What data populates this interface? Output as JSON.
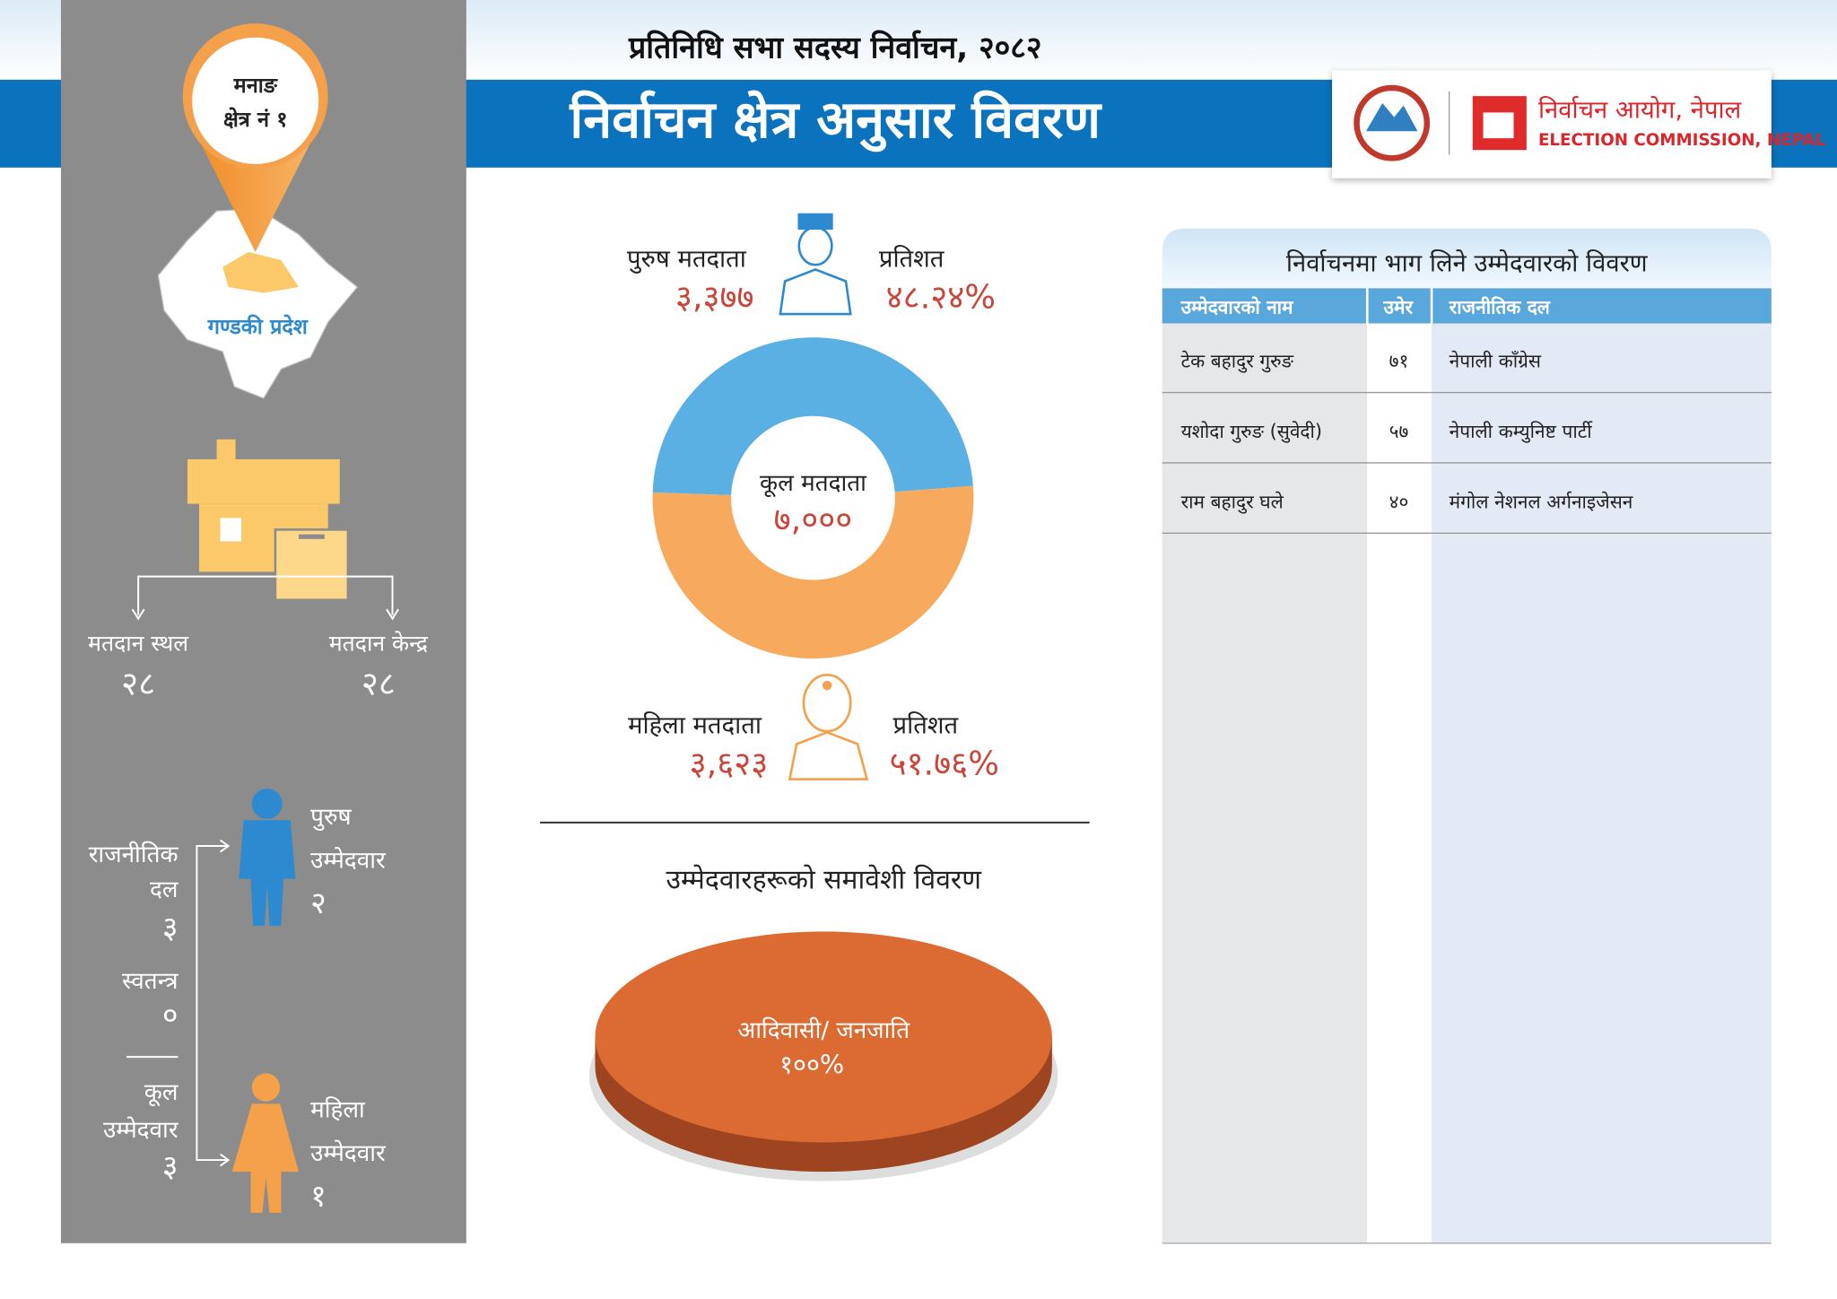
{
  "header": {
    "subtitle": "प्रतिनिधि सभा सदस्य निर्वाचन, २०८२",
    "title": "निर्वाचन क्षेत्र अनुसार विवरण",
    "logo_np": "निर्वाचन आयोग, नेपाल",
    "logo_en": "ELECTION COMMISSION, NEPAL"
  },
  "sidebar": {
    "constituency_name": "मनाङ",
    "constituency_no": "क्षेत्र नं १",
    "province": "गण्डकी प्रदेश",
    "polling_places": {
      "label": "मतदान स्थल",
      "value": "२८"
    },
    "polling_centers": {
      "label": "मतदान केन्द्र",
      "value": "२८"
    },
    "party_candidates": {
      "label": [
        "राजनीतिक",
        "दल"
      ],
      "value": "३"
    },
    "independent_candidates": {
      "label": "स्वतन्त्र",
      "value": "०"
    },
    "total_candidates": {
      "label": [
        "कूल",
        "उम्मेदवार"
      ],
      "value": "३"
    },
    "male_candidates": {
      "label": [
        "पुरुष",
        "उम्मेदवार"
      ],
      "value": "२"
    },
    "female_candidates": {
      "label": [
        "महिला",
        "उम्मेदवार"
      ],
      "value": "१"
    }
  },
  "chart_data": [
    {
      "type": "donut",
      "categories": [
        "पुरुष मतदाता",
        "महिला मतदाता"
      ],
      "values": [
        3377,
        3623
      ],
      "value_labels": [
        "३,३७७",
        "३,६२३"
      ],
      "colors": [
        "#5aafe3",
        "#f7aa5e"
      ],
      "percent_title": "प्रतिशत",
      "percent_labels": [
        "४८.२४%",
        "५१.७६%"
      ],
      "total_title": "कूल मतदाता",
      "total_label": "७,०००"
    },
    {
      "type": "pie",
      "title": "उम्मेदवारहरूको समावेशी विवरण",
      "categories": [
        "आदिवासी/ जनजाति"
      ],
      "values": [
        100
      ],
      "value_labels": [
        "१००%"
      ],
      "colors": [
        "#dc6b33"
      ]
    }
  ],
  "table": {
    "title": "निर्वाचनमा भाग लिने उम्मेदवारको विवरण",
    "header": [
      "उम्मेदवारको नाम",
      "उमेर",
      "राजनीतिक दल"
    ],
    "rows": [
      [
        "टेक बहादुर गुरुङ",
        "७१",
        "नेपाली काँग्रेस"
      ],
      [
        "यशोदा गुरुङ (सुवेदी)",
        "५७",
        "नेपाली कम्युनिष्ट पार्टी"
      ],
      [
        "राम बहादुर घले",
        "४०",
        "मंगोल नेशनल अर्गनाइजेसन"
      ]
    ]
  }
}
